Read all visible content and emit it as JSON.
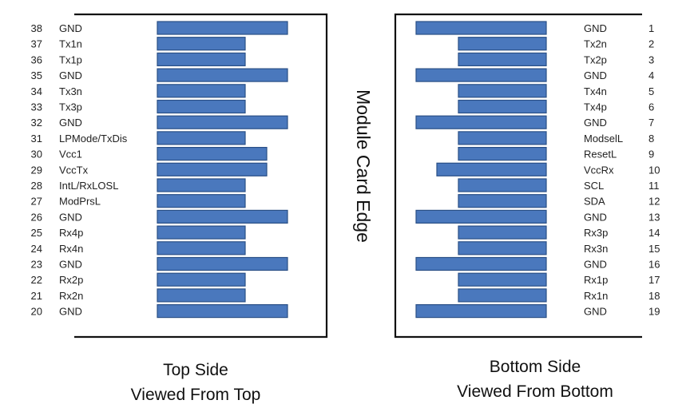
{
  "edge_label": "Module Card Edge",
  "colors": {
    "pad_fill": "#4a78bd",
    "pad_stroke": "#2a4f86",
    "frame": "#111111"
  },
  "top_side": {
    "caption_line1": "Top Side",
    "caption_line2": "Viewed From Top",
    "pins": [
      {
        "num": "38",
        "name": "GND",
        "pad": "long"
      },
      {
        "num": "37",
        "name": "Tx1n",
        "pad": "short"
      },
      {
        "num": "36",
        "name": "Tx1p",
        "pad": "short"
      },
      {
        "num": "35",
        "name": "GND",
        "pad": "long"
      },
      {
        "num": "34",
        "name": "Tx3n",
        "pad": "short"
      },
      {
        "num": "33",
        "name": "Tx3p",
        "pad": "short"
      },
      {
        "num": "32",
        "name": "GND",
        "pad": "long"
      },
      {
        "num": "31",
        "name": "LPMode/TxDis",
        "pad": "short"
      },
      {
        "num": "30",
        "name": "Vcc1",
        "pad": "medium"
      },
      {
        "num": "29",
        "name": "VccTx",
        "pad": "medium"
      },
      {
        "num": "28",
        "name": "IntL/RxLOSL",
        "pad": "short"
      },
      {
        "num": "27",
        "name": "ModPrsL",
        "pad": "short"
      },
      {
        "num": "26",
        "name": "GND",
        "pad": "long"
      },
      {
        "num": "25",
        "name": "Rx4p",
        "pad": "short"
      },
      {
        "num": "24",
        "name": "Rx4n",
        "pad": "short"
      },
      {
        "num": "23",
        "name": "GND",
        "pad": "long"
      },
      {
        "num": "22",
        "name": "Rx2p",
        "pad": "short"
      },
      {
        "num": "21",
        "name": "Rx2n",
        "pad": "short"
      },
      {
        "num": "20",
        "name": "GND",
        "pad": "long"
      }
    ]
  },
  "bottom_side": {
    "caption_line1": "Bottom Side",
    "caption_line2": "Viewed From Bottom",
    "pins": [
      {
        "num": "1",
        "name": "GND",
        "pad": "long"
      },
      {
        "num": "2",
        "name": "Tx2n",
        "pad": "short"
      },
      {
        "num": "3",
        "name": "Tx2p",
        "pad": "short"
      },
      {
        "num": "4",
        "name": "GND",
        "pad": "long"
      },
      {
        "num": "5",
        "name": "Tx4n",
        "pad": "short"
      },
      {
        "num": "6",
        "name": "Tx4p",
        "pad": "short"
      },
      {
        "num": "7",
        "name": "GND",
        "pad": "long"
      },
      {
        "num": "8",
        "name": "ModselL",
        "pad": "short"
      },
      {
        "num": "9",
        "name": "ResetL",
        "pad": "short"
      },
      {
        "num": "10",
        "name": "VccRx",
        "pad": "medium"
      },
      {
        "num": "11",
        "name": "SCL",
        "pad": "short"
      },
      {
        "num": "12",
        "name": "SDA",
        "pad": "short"
      },
      {
        "num": "13",
        "name": "GND",
        "pad": "long"
      },
      {
        "num": "14",
        "name": "Rx3p",
        "pad": "short"
      },
      {
        "num": "15",
        "name": "Rx3n",
        "pad": "short"
      },
      {
        "num": "16",
        "name": "GND",
        "pad": "long"
      },
      {
        "num": "17",
        "name": "Rx1p",
        "pad": "short"
      },
      {
        "num": "18",
        "name": "Rx1n",
        "pad": "short"
      },
      {
        "num": "19",
        "name": "GND",
        "pad": "long"
      }
    ]
  }
}
